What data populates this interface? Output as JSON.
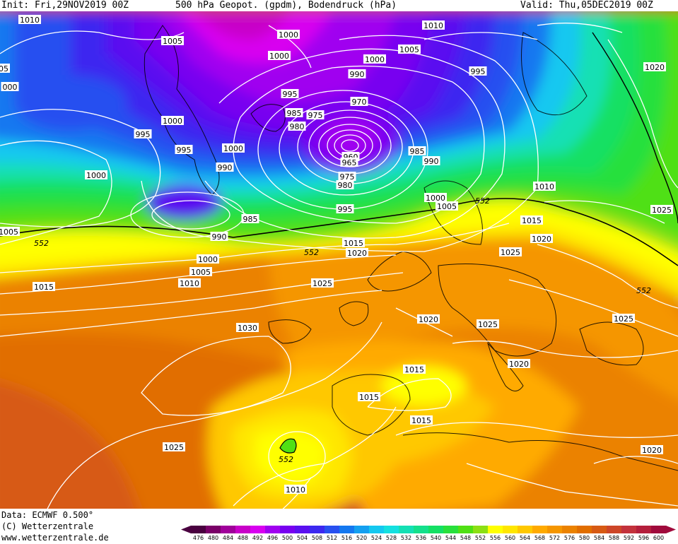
{
  "header": {
    "init": "Init: Fri,29NOV2019  00Z",
    "title": "500  hPa  Geopot.  (gpdm),  Bodendruck  (hPa)",
    "valid": "Valid: Thu,05DEC2019  00Z"
  },
  "footer": {
    "data_line": "Data: ECMWF   0.500°",
    "copyright": "(C)  Wetterzentrale",
    "url": "www.wetterzentrale.de"
  },
  "map": {
    "colors": {
      "c476": "#4a0040",
      "c480": "#7a0068",
      "c484": "#a0009a",
      "c488": "#c800c8",
      "c492": "#d800f0",
      "c496": "#a000f0",
      "c500": "#7800f0",
      "c504": "#5a10f0",
      "c508": "#3c28f0",
      "c512": "#2850f0",
      "c516": "#1478f0",
      "c520": "#14a0f0",
      "c524": "#14c8f0",
      "c528": "#14e0e0",
      "c532": "#14e0b4",
      "c536": "#14e08c",
      "c540": "#14e064",
      "c544": "#28e03c",
      "c548": "#50e014",
      "c552": "#8ce014",
      "c556": "#ffff00",
      "c560": "#ffe600",
      "c564": "#ffc800",
      "c568": "#ffaa00",
      "c572": "#f59600",
      "c576": "#eb8200",
      "c580": "#e16e00",
      "c584": "#d75a14",
      "c588": "#cd4628",
      "c592": "#c3323c",
      "c596": "#b41e3c",
      "c600": "#a00a3c"
    },
    "height_label_552": "552",
    "pressure_labels": [
      {
        "id": "p1",
        "text": "1010"
      },
      {
        "id": "p2",
        "text": "1005"
      },
      {
        "id": "p3",
        "text": "1000"
      },
      {
        "id": "p4",
        "text": "1000"
      },
      {
        "id": "p5",
        "text": "1010"
      },
      {
        "id": "p6",
        "text": "1005"
      },
      {
        "id": "p7",
        "text": "1000"
      },
      {
        "id": "p8",
        "text": "990"
      },
      {
        "id": "p9",
        "text": "995"
      },
      {
        "id": "p10",
        "text": "995"
      },
      {
        "id": "p11",
        "text": "970"
      },
      {
        "id": "p12",
        "text": "985"
      },
      {
        "id": "p13",
        "text": "975"
      },
      {
        "id": "p14",
        "text": "980"
      },
      {
        "id": "p15",
        "text": "1000"
      },
      {
        "id": "p16",
        "text": "995"
      },
      {
        "id": "p17",
        "text": "995"
      },
      {
        "id": "p18",
        "text": "1000"
      },
      {
        "id": "p19",
        "text": "1000"
      },
      {
        "id": "p20",
        "text": "990"
      },
      {
        "id": "p21",
        "text": "960"
      },
      {
        "id": "p22",
        "text": "965"
      },
      {
        "id": "p23",
        "text": "975"
      },
      {
        "id": "p24",
        "text": "980"
      },
      {
        "id": "p25",
        "text": "985"
      },
      {
        "id": "p26",
        "text": "990"
      },
      {
        "id": "p27",
        "text": "1020"
      },
      {
        "id": "p28",
        "text": "1010"
      },
      {
        "id": "p29",
        "text": "1000"
      },
      {
        "id": "p30",
        "text": "1005"
      },
      {
        "id": "p31",
        "text": "995"
      },
      {
        "id": "p32",
        "text": "985"
      },
      {
        "id": "p33",
        "text": "990"
      },
      {
        "id": "p34",
        "text": "1005"
      },
      {
        "id": "p35",
        "text": "1025"
      },
      {
        "id": "p36",
        "text": "1015"
      },
      {
        "id": "p37",
        "text": "1020"
      },
      {
        "id": "p38",
        "text": "1015"
      },
      {
        "id": "p39",
        "text": "1020"
      },
      {
        "id": "p40",
        "text": "1025"
      },
      {
        "id": "p41",
        "text": "1000"
      },
      {
        "id": "p42",
        "text": "1005"
      },
      {
        "id": "p43",
        "text": "1010"
      },
      {
        "id": "p44",
        "text": "1015"
      },
      {
        "id": "p45",
        "text": "1025"
      },
      {
        "id": "p46",
        "text": "1030"
      },
      {
        "id": "p47",
        "text": "1020"
      },
      {
        "id": "p48",
        "text": "1025"
      },
      {
        "id": "p49",
        "text": "1025"
      },
      {
        "id": "p50",
        "text": "1015"
      },
      {
        "id": "p51",
        "text": "1015"
      },
      {
        "id": "p52",
        "text": "1015"
      },
      {
        "id": "p53",
        "text": "1020"
      },
      {
        "id": "p54",
        "text": "1025"
      },
      {
        "id": "p55",
        "text": "1020"
      },
      {
        "id": "p56",
        "text": "1010"
      },
      {
        "id": "p57",
        "text": "05"
      },
      {
        "id": "p58",
        "text": "000"
      }
    ]
  },
  "scale": {
    "ticks": [
      "476",
      "480",
      "484",
      "488",
      "492",
      "496",
      "500",
      "504",
      "508",
      "512",
      "516",
      "520",
      "524",
      "528",
      "532",
      "536",
      "540",
      "544",
      "548",
      "552",
      "556",
      "560",
      "564",
      "568",
      "572",
      "576",
      "580",
      "584",
      "588",
      "592",
      "596",
      "600"
    ],
    "colors": [
      "#4a0040",
      "#7a0068",
      "#a0009a",
      "#c800c8",
      "#d800f0",
      "#a000f0",
      "#7800f0",
      "#5a10f0",
      "#3c28f0",
      "#2850f0",
      "#1478f0",
      "#14a0f0",
      "#14c8f0",
      "#14e0e0",
      "#14e0b4",
      "#14e08c",
      "#14e064",
      "#28e03c",
      "#50e014",
      "#8ce014",
      "#ffff00",
      "#ffe600",
      "#ffc800",
      "#ffaa00",
      "#f59600",
      "#eb8200",
      "#e16e00",
      "#d75a14",
      "#cd4628",
      "#c3323c",
      "#b41e3c",
      "#a00a3c"
    ]
  }
}
